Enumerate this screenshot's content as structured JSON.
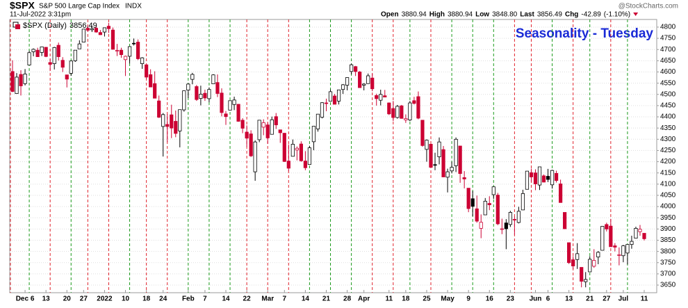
{
  "header": {
    "symbol": "$SPX",
    "name": "S&P 500 Large Cap Index",
    "exchange": "INDX",
    "date": "11-Jul-2022 3:31pm",
    "open_label": "Open",
    "open": "3880.94",
    "high_label": "High",
    "high": "3880.94",
    "low_label": "Low",
    "low": "3848.80",
    "last_label": "Last",
    "last": "3856.49",
    "chg_label": "Chg",
    "chg": "-42.89",
    "chg_pct": "(-1.10%)",
    "credit": "@StockCharts.com"
  },
  "chart_data": {
    "type": "candlestick",
    "legend": "$SPX (Daily)",
    "annotation": "Seasonality - Tuesday",
    "up_color": "#000000",
    "down_color": "#cc0033",
    "tuesday_up_color": "#1a9a1a",
    "tuesday_down_color": "#e0202a",
    "grid": true,
    "ylim": [
      3616,
      4834
    ],
    "yticks": [
      3650,
      3700,
      3750,
      3800,
      3850,
      3900,
      3950,
      4000,
      4050,
      4100,
      4150,
      4200,
      4250,
      4300,
      4350,
      4400,
      4450,
      4500,
      4550,
      4600,
      4650,
      4700,
      4750,
      4800
    ],
    "categories": [
      null,
      null,
      null,
      "Dec 6",
      null,
      null,
      null,
      null,
      "13",
      null,
      null,
      null,
      null,
      "20",
      null,
      null,
      null,
      "27",
      null,
      null,
      null,
      null,
      "2022",
      null,
      null,
      null,
      null,
      "10",
      null,
      null,
      null,
      null,
      "18",
      null,
      null,
      null,
      "24",
      null,
      null,
      null,
      null,
      null,
      "Feb",
      null,
      null,
      null,
      "7",
      null,
      null,
      null,
      null,
      "14",
      null,
      null,
      null,
      null,
      "22",
      null,
      null,
      null,
      null,
      "Mar",
      null,
      null,
      null,
      "7",
      null,
      null,
      null,
      null,
      "14",
      null,
      null,
      null,
      null,
      "21",
      null,
      null,
      null,
      null,
      "28",
      null,
      null,
      null,
      "Apr",
      null,
      null,
      null,
      null,
      null,
      "11",
      null,
      null,
      null,
      "18",
      null,
      null,
      null,
      null,
      "25",
      null,
      null,
      null,
      null,
      "May",
      null,
      null,
      null,
      null,
      "9",
      null,
      null,
      null,
      null,
      "16",
      null,
      null,
      null,
      null,
      "23",
      null,
      null,
      null,
      null,
      null,
      "Jun",
      null,
      null,
      "6",
      null,
      null,
      null,
      null,
      "13",
      null,
      null,
      null,
      null,
      "21",
      null,
      null,
      null,
      "27",
      null,
      null,
      null,
      "Jul",
      null,
      null,
      null,
      null,
      "11"
    ],
    "open": [
      4602,
      4504,
      4589,
      4548,
      4631,
      4690,
      4697,
      4687,
      4710,
      4642,
      4637,
      4719,
      4652,
      4587,
      4594,
      4650,
      4703,
      4733,
      4795,
      4788,
      4795,
      4776,
      4778,
      4804,
      4787,
      4693,
      4697,
      4655,
      4670,
      4728,
      4733,
      4637,
      4632,
      4588,
      4548,
      4471,
      4357,
      4366,
      4409,
      4380,
      4337,
      4431,
      4519,
      4567,
      4535,
      4482,
      4505,
      4481,
      4547,
      4553,
      4506,
      4413,
      4430,
      4455,
      4456,
      4385,
      4332,
      4324,
      4155,
      4298,
      4354,
      4364,
      4322,
      4401,
      4342,
      4327,
      4203,
      4224,
      4252,
      4279,
      4203,
      4188,
      4289,
      4346,
      4398,
      4462,
      4470,
      4493,
      4470,
      4522,
      4541,
      4602,
      4624,
      4600,
      4541,
      4548,
      4573,
      4495,
      4474,
      4494,
      4462,
      4437,
      4397,
      4449,
      4386,
      4386,
      4472,
      4490,
      4385,
      4255,
      4278,
      4187,
      4222,
      4254,
      4131,
      4159,
      4182,
      4270,
      4129,
      4082,
      4035,
      3990,
      3903,
      3963,
      4014,
      4053,
      4051,
      3899,
      3927,
      3920,
      3943,
      3929,
      3985,
      4077,
      4151,
      4150,
      4096,
      4137,
      4135,
      4097,
      4148,
      4101,
      3974,
      3839,
      3763,
      3764,
      3729,
      3665,
      3709,
      3734,
      3775,
      3805,
      3920,
      3913,
      3825,
      3785,
      3781,
      3793,
      3831,
      3859,
      3888,
      3880.94
    ],
    "high": [
      4652,
      4595,
      4608,
      4613,
      4694,
      4705,
      4708,
      4713,
      4711,
      4660,
      4712,
      4731,
      4666,
      4588,
      4651,
      4697,
      4741,
      4791,
      4807,
      4805,
      4808,
      4787,
      4797,
      4819,
      4798,
      4725,
      4708,
      4673,
      4714,
      4749,
      4745,
      4666,
      4632,
      4612,
      4603,
      4495,
      4417,
      4412,
      4454,
      4428,
      4432,
      4517,
      4550,
      4596,
      4542,
      4539,
      4521,
      4531,
      4590,
      4589,
      4527,
      4426,
      4473,
      4490,
      4457,
      4394,
      4362,
      4340,
      4295,
      4385,
      4389,
      4375,
      4401,
      4417,
      4342,
      4328,
      4277,
      4299,
      4268,
      4291,
      4247,
      4271,
      4358,
      4412,
      4465,
      4481,
      4522,
      4502,
      4520,
      4546,
      4575,
      4637,
      4627,
      4604,
      4550,
      4593,
      4593,
      4503,
      4521,
      4520,
      4464,
      4471,
      4453,
      4453,
      4411,
      4471,
      4489,
      4513,
      4385,
      4299,
      4278,
      4240,
      4308,
      4270,
      4169,
      4200,
      4308,
      4270,
      4158,
      4082,
      4069,
      4049,
      3965,
      4038,
      4046,
      4090,
      4061,
      3946,
      3944,
      3981,
      3955,
      3999,
      4075,
      4158,
      4169,
      4166,
      4177,
      4143,
      4168,
      4164,
      4160,
      4120,
      3974,
      3839,
      3779,
      3837,
      3729,
      3708,
      3779,
      3810,
      3802,
      3913,
      3928,
      3945,
      3837,
      3818,
      3829,
      3832,
      3870,
      3910,
      3918,
      3880.94
    ],
    "low": [
      4510,
      4504,
      4495,
      4540,
      4631,
      4670,
      4667,
      4671,
      4666,
      4606,
      4611,
      4651,
      4600,
      4531,
      4583,
      4645,
      4703,
      4733,
      4780,
      4778,
      4775,
      4765,
      4758,
      4774,
      4700,
      4671,
      4663,
      4582,
      4638,
      4718,
      4653,
      4614,
      4569,
      4532,
      4483,
      4395,
      4223,
      4288,
      4305,
      4309,
      4264,
      4423,
      4484,
      4545,
      4471,
      4451,
      4471,
      4465,
      4547,
      4488,
      4402,
      4364,
      4430,
      4430,
      4378,
      4327,
      4267,
      4221,
      4115,
      4287,
      4318,
      4280,
      4322,
      4346,
      4284,
      4199,
      4157,
      4224,
      4206,
      4200,
      4162,
      4188,
      4251,
      4334,
      4393,
      4425,
      4470,
      4456,
      4455,
      4502,
      4518,
      4589,
      4582,
      4530,
      4518,
      4548,
      4514,
      4450,
      4451,
      4487,
      4408,
      4381,
      4392,
      4392,
      4373,
      4381,
      4455,
      4389,
      4267,
      4200,
      4175,
      4162,
      4188,
      4132,
      4063,
      4148,
      4154,
      4106,
      4081,
      3975,
      3957,
      3928,
      3859,
      3963,
      3984,
      4034,
      3917,
      3877,
      3810,
      3909,
      3875,
      3925,
      3985,
      4077,
      4110,
      4073,
      4074,
      4108,
      4109,
      4080,
      4107,
      4017,
      3900,
      3744,
      3722,
      3722,
      3640,
      3640,
      3709,
      3727,
      3743,
      3805,
      3889,
      3820,
      3800,
      3738,
      3752,
      3742,
      3812,
      3858,
      3870,
      3848.8
    ],
    "close": [
      4513,
      4577,
      4538,
      4591,
      4686,
      4701,
      4668,
      4712,
      4669,
      4634,
      4709,
      4668,
      4621,
      4568,
      4649,
      4697,
      4725,
      4791,
      4786,
      4793,
      4778,
      4766,
      4797,
      4793,
      4701,
      4696,
      4677,
      4670,
      4713,
      4726,
      4659,
      4663,
      4577,
      4533,
      4483,
      4398,
      4410,
      4357,
      4350,
      4326,
      4432,
      4516,
      4546,
      4589,
      4477,
      4501,
      4484,
      4522,
      4587,
      4504,
      4419,
      4401,
      4472,
      4475,
      4380,
      4349,
      4305,
      4226,
      4288,
      4385,
      4374,
      4306,
      4387,
      4364,
      4329,
      4201,
      4171,
      4278,
      4260,
      4204,
      4173,
      4262,
      4358,
      4412,
      4463,
      4461,
      4512,
      4456,
      4520,
      4543,
      4575,
      4632,
      4602,
      4530,
      4546,
      4583,
      4525,
      4481,
      4500,
      4488,
      4413,
      4397,
      4447,
      4393,
      4392,
      4462,
      4460,
      4394,
      4272,
      4296,
      4175,
      4184,
      4288,
      4132,
      4155,
      4175,
      4300,
      4147,
      4123,
      3991,
      4001,
      3935,
      3930,
      4024,
      4008,
      4088,
      3923,
      3901,
      3901,
      3974,
      3941,
      3979,
      4058,
      4158,
      4132,
      4101,
      4177,
      4109,
      4121,
      4161,
      4116,
      4018,
      3901,
      3750,
      3735,
      3790,
      3667,
      3675,
      3765,
      3760,
      3796,
      3912,
      3900,
      3821,
      3819,
      3785,
      3825,
      3831,
      3845,
      3903,
      3899,
      3856.49
    ]
  }
}
